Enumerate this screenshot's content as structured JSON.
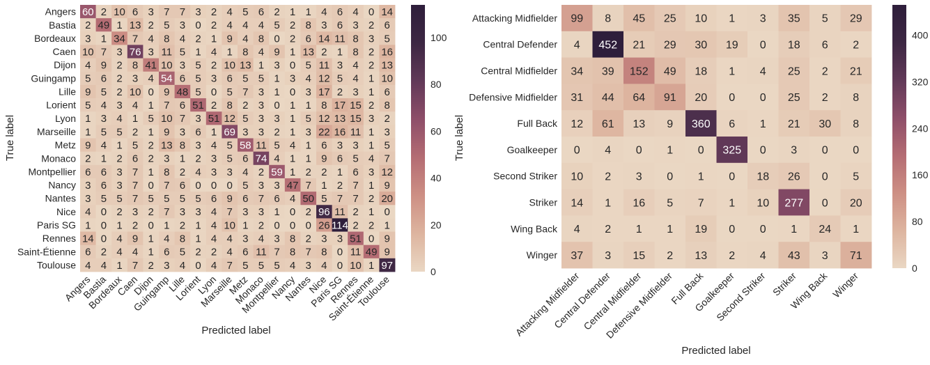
{
  "chart_data": [
    {
      "type": "heatmap",
      "xlabel": "Predicted label",
      "ylabel": "True label",
      "categories": [
        "Angers",
        "Bastia",
        "Bordeaux",
        "Caen",
        "Dijon",
        "Guingamp",
        "Lille",
        "Lorient",
        "Lyon",
        "Marseille",
        "Metz",
        "Monaco",
        "Montpellier",
        "Nancy",
        "Nantes",
        "Nice",
        "Paris SG",
        "Rennes",
        "Saint-Étienne",
        "Toulouse"
      ],
      "values": [
        [
          60,
          2,
          10,
          6,
          3,
          7,
          7,
          3,
          2,
          4,
          5,
          6,
          2,
          1,
          1,
          4,
          6,
          4,
          0,
          14
        ],
        [
          2,
          49,
          1,
          13,
          2,
          5,
          3,
          0,
          2,
          4,
          4,
          4,
          5,
          2,
          8,
          3,
          6,
          3,
          2,
          6
        ],
        [
          3,
          1,
          34,
          7,
          4,
          8,
          4,
          2,
          1,
          9,
          4,
          8,
          0,
          2,
          6,
          14,
          11,
          8,
          3,
          5
        ],
        [
          10,
          7,
          3,
          76,
          3,
          11,
          5,
          1,
          4,
          1,
          8,
          4,
          9,
          1,
          13,
          2,
          1,
          8,
          2,
          16
        ],
        [
          4,
          9,
          2,
          8,
          41,
          10,
          3,
          5,
          2,
          10,
          13,
          1,
          3,
          0,
          5,
          11,
          3,
          4,
          2,
          13
        ],
        [
          5,
          6,
          2,
          3,
          4,
          54,
          6,
          5,
          3,
          6,
          5,
          5,
          1,
          3,
          4,
          12,
          5,
          4,
          1,
          10
        ],
        [
          9,
          5,
          2,
          10,
          0,
          9,
          48,
          5,
          0,
          5,
          7,
          3,
          1,
          0,
          3,
          17,
          2,
          3,
          1,
          6
        ],
        [
          5,
          4,
          3,
          4,
          1,
          7,
          6,
          51,
          2,
          8,
          2,
          3,
          0,
          1,
          1,
          8,
          17,
          15,
          2,
          8
        ],
        [
          1,
          3,
          4,
          1,
          5,
          10,
          7,
          3,
          51,
          12,
          5,
          3,
          3,
          1,
          5,
          12,
          13,
          15,
          3,
          2
        ],
        [
          1,
          5,
          5,
          2,
          1,
          9,
          3,
          6,
          1,
          69,
          3,
          3,
          2,
          1,
          3,
          22,
          16,
          11,
          1,
          3
        ],
        [
          9,
          4,
          1,
          5,
          2,
          13,
          8,
          3,
          4,
          5,
          58,
          11,
          5,
          4,
          1,
          6,
          3,
          3,
          1,
          5
        ],
        [
          2,
          1,
          2,
          6,
          2,
          3,
          1,
          2,
          3,
          5,
          6,
          74,
          4,
          1,
          1,
          9,
          6,
          5,
          4,
          7
        ],
        [
          6,
          6,
          3,
          7,
          1,
          8,
          2,
          4,
          3,
          3,
          4,
          2,
          59,
          1,
          2,
          2,
          1,
          6,
          3,
          12
        ],
        [
          3,
          6,
          3,
          7,
          0,
          7,
          6,
          0,
          0,
          0,
          5,
          3,
          3,
          47,
          7,
          1,
          2,
          7,
          1,
          9
        ],
        [
          3,
          5,
          5,
          7,
          5,
          5,
          5,
          5,
          6,
          9,
          6,
          7,
          6,
          4,
          50,
          5,
          7,
          7,
          2,
          20
        ],
        [
          4,
          0,
          2,
          3,
          2,
          7,
          3,
          3,
          4,
          7,
          3,
          3,
          1,
          0,
          2,
          96,
          11,
          2,
          1,
          0
        ],
        [
          1,
          0,
          1,
          2,
          0,
          1,
          2,
          1,
          4,
          10,
          1,
          2,
          0,
          0,
          0,
          26,
          114,
          2,
          2,
          1
        ],
        [
          14,
          0,
          4,
          9,
          1,
          4,
          8,
          1,
          4,
          4,
          3,
          4,
          3,
          8,
          2,
          3,
          3,
          51,
          0,
          9
        ],
        [
          6,
          2,
          4,
          4,
          1,
          6,
          5,
          2,
          2,
          4,
          6,
          11,
          7,
          8,
          7,
          8,
          0,
          11,
          49,
          9
        ],
        [
          4,
          4,
          1,
          7,
          2,
          3,
          4,
          0,
          4,
          7,
          5,
          5,
          5,
          4,
          3,
          4,
          0,
          10,
          1,
          97
        ]
      ],
      "colorbar": {
        "min": 0,
        "max": 114,
        "ticks": [
          0,
          20,
          40,
          60,
          80,
          100
        ]
      }
    },
    {
      "type": "heatmap",
      "xlabel": "Predicted label",
      "ylabel": "True label",
      "categories": [
        "Attacking Midfielder",
        "Central Defender",
        "Central Midfielder",
        "Defensive Midfielder",
        "Full Back",
        "Goalkeeper",
        "Second Striker",
        "Striker",
        "Wing Back",
        "Winger"
      ],
      "values": [
        [
          99,
          8,
          45,
          25,
          10,
          1,
          3,
          35,
          5,
          29
        ],
        [
          4,
          452,
          21,
          29,
          30,
          19,
          0,
          18,
          6,
          2
        ],
        [
          34,
          39,
          152,
          49,
          18,
          1,
          4,
          25,
          2,
          21
        ],
        [
          31,
          44,
          64,
          91,
          20,
          0,
          0,
          25,
          2,
          8
        ],
        [
          12,
          61,
          13,
          9,
          360,
          6,
          1,
          21,
          30,
          8
        ],
        [
          0,
          4,
          0,
          1,
          0,
          325,
          0,
          3,
          0,
          0
        ],
        [
          10,
          2,
          3,
          0,
          1,
          0,
          18,
          26,
          0,
          5
        ],
        [
          14,
          1,
          16,
          5,
          7,
          1,
          10,
          277,
          0,
          20
        ],
        [
          4,
          2,
          1,
          1,
          19,
          0,
          0,
          1,
          24,
          1
        ],
        [
          37,
          3,
          15,
          2,
          13,
          2,
          4,
          43,
          3,
          71
        ]
      ],
      "colorbar": {
        "min": 0,
        "max": 452,
        "ticks": [
          0,
          80,
          160,
          240,
          320,
          400
        ]
      }
    }
  ],
  "colors": {
    "low": "#ead7c3",
    "high": "#2e1e3b",
    "text_light": "#ffffff",
    "text_dark": "#262626"
  }
}
